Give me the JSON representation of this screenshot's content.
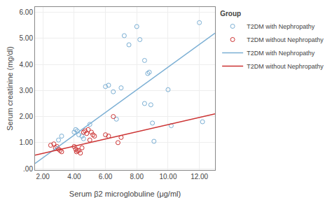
{
  "chart_data": {
    "type": "scatter",
    "xlabel": "Serum β2 microglobuline (μg/ml)",
    "ylabel": "Serum creatinine (mg/dl)",
    "xlim": [
      1.5,
      13.0
    ],
    "ylim": [
      -0.05,
      6.2
    ],
    "xticks": [
      {
        "value": 2.0,
        "label": "2.00"
      },
      {
        "value": 4.0,
        "label": "4.00"
      },
      {
        "value": 6.0,
        "label": "6.00"
      },
      {
        "value": 8.0,
        "label": "8.00"
      },
      {
        "value": 10.0,
        "label": "10.00"
      },
      {
        "value": 12.0,
        "label": "12.00"
      }
    ],
    "yticks": [
      {
        "value": 0.0,
        "label": ".00"
      },
      {
        "value": 1.0,
        "label": "1.00"
      },
      {
        "value": 2.0,
        "label": "2.00"
      },
      {
        "value": 3.0,
        "label": "3.00"
      },
      {
        "value": 4.0,
        "label": "4.00"
      },
      {
        "value": 5.0,
        "label": "5.00"
      },
      {
        "value": 6.0,
        "label": "6.00"
      }
    ],
    "grid": true,
    "legend": "upper right",
    "legend_title": "Group",
    "series": [
      {
        "name": "T2DM with Nephropathy",
        "type": "scatter",
        "marker": "circle-open",
        "color": "#7BAFD4",
        "x": [
          3.0,
          3.2,
          4.0,
          4.1,
          4.2,
          4.3,
          4.5,
          4.6,
          5.0,
          6.0,
          6.2,
          6.5,
          6.7,
          7.0,
          7.2,
          7.5,
          8.0,
          8.2,
          8.5,
          8.5,
          8.7,
          8.8,
          8.9,
          9.0,
          9.1,
          10.0,
          10.2,
          12.0,
          12.2
        ],
        "values": [
          1.1,
          1.25,
          1.4,
          1.5,
          1.45,
          1.3,
          1.25,
          1.15,
          1.7,
          3.15,
          3.2,
          2.95,
          1.9,
          3.1,
          5.1,
          4.75,
          5.45,
          4.95,
          2.5,
          4.15,
          3.65,
          3.7,
          2.45,
          1.75,
          1.05,
          3.03,
          1.65,
          5.6,
          1.8
        ]
      },
      {
        "name": "T2DM without Nephropathy",
        "type": "scatter",
        "marker": "circle-open",
        "color": "#CC3333",
        "x": [
          2.5,
          2.7,
          2.8,
          2.9,
          3.0,
          3.1,
          3.2,
          4.0,
          4.1,
          4.15,
          4.2,
          4.3,
          4.4,
          4.5,
          4.6,
          4.7,
          4.8,
          4.9,
          5.0,
          5.1,
          5.2,
          5.3,
          6.0,
          6.2,
          6.5,
          6.8,
          7.0
        ],
        "values": [
          0.9,
          0.95,
          0.8,
          0.85,
          0.75,
          0.7,
          0.65,
          0.85,
          0.75,
          0.65,
          0.7,
          0.7,
          0.6,
          0.8,
          1.4,
          1.45,
          1.35,
          1.5,
          1.1,
          1.4,
          1.3,
          1.25,
          1.3,
          1.25,
          2.0,
          1.0,
          1.2
        ]
      },
      {
        "name": "T2DM with Nephropathy",
        "type": "line",
        "line_style": "solid",
        "color": "#7BAFD4",
        "x": [
          1.5,
          13.0
        ],
        "values": [
          0.2,
          5.2
        ]
      },
      {
        "name": "T2DM without Nephropathy",
        "type": "line",
        "line_style": "solid",
        "color": "#CC3333",
        "x": [
          1.5,
          13.0
        ],
        "values": [
          0.52,
          2.1
        ]
      }
    ]
  }
}
